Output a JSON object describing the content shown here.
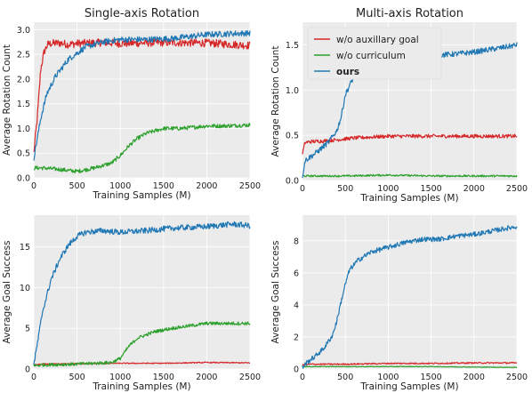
{
  "chart_data": [
    {
      "type": "line",
      "title": "Single-axis Rotation",
      "xlabel": "Training Samples (M)",
      "ylabel": "Average Rotation Count",
      "xlim": [
        0,
        2500
      ],
      "ylim": [
        0,
        3.15
      ],
      "xticks": [
        "0",
        "500",
        "1000",
        "1500",
        "2000",
        "2500"
      ],
      "xtick_values": [
        0,
        500,
        1000,
        1500,
        2000,
        2500
      ],
      "yticks": [
        "0.0",
        "0.5",
        "1.0",
        "1.5",
        "2.0",
        "2.5",
        "3.0"
      ],
      "ytick_values": [
        0,
        0.5,
        1.0,
        1.5,
        2.0,
        2.5,
        3.0
      ],
      "grid": true,
      "series": [
        {
          "name": "w/o auxillary goal",
          "color": "#d62728",
          "noise": 0.08,
          "x": [
            0,
            40,
            80,
            120,
            160,
            200,
            300,
            400,
            500,
            800,
            1000,
            1500,
            2000,
            2300,
            2500
          ],
          "y": [
            0.5,
            1.2,
            2.2,
            2.55,
            2.7,
            2.72,
            2.73,
            2.7,
            2.72,
            2.74,
            2.72,
            2.74,
            2.73,
            2.7,
            2.68
          ]
        },
        {
          "name": "w/o curriculum",
          "color": "#2ca02c",
          "noise": 0.04,
          "x": [
            0,
            100,
            300,
            500,
            700,
            900,
            1000,
            1100,
            1200,
            1300,
            1500,
            1700,
            2000,
            2200,
            2500
          ],
          "y": [
            0.2,
            0.2,
            0.17,
            0.13,
            0.2,
            0.3,
            0.45,
            0.65,
            0.8,
            0.9,
            1.0,
            1.0,
            1.05,
            1.05,
            1.07
          ]
        },
        {
          "name": "ours",
          "color": "#1f77b4",
          "noise": 0.06,
          "x": [
            0,
            30,
            80,
            150,
            250,
            400,
            600,
            800,
            1000,
            1300,
            1600,
            2000,
            2300,
            2500
          ],
          "y": [
            0.4,
            0.7,
            1.2,
            1.7,
            2.05,
            2.4,
            2.65,
            2.75,
            2.8,
            2.8,
            2.82,
            2.9,
            2.92,
            2.93
          ]
        }
      ]
    },
    {
      "type": "line",
      "title": "Multi-axis Rotation",
      "xlabel": "Training Samples (M)",
      "ylabel": "Average Rotation Count",
      "xlim": [
        0,
        2500
      ],
      "ylim": [
        0,
        1.75
      ],
      "xticks": [
        "0",
        "500",
        "1000",
        "1500",
        "2000",
        "2500"
      ],
      "xtick_values": [
        0,
        500,
        1000,
        1500,
        2000,
        2500
      ],
      "yticks": [
        "0.0",
        "0.5",
        "1.0",
        "1.5"
      ],
      "ytick_values": [
        0,
        0.5,
        1.0,
        1.5
      ],
      "grid": true,
      "legend": "top-left",
      "series": [
        {
          "name": "w/o auxillary goal",
          "color": "#d62728",
          "noise": 0.02,
          "x": [
            0,
            30,
            100,
            300,
            600,
            1000,
            1500,
            2000,
            2500
          ],
          "y": [
            0.3,
            0.42,
            0.43,
            0.44,
            0.47,
            0.49,
            0.49,
            0.49,
            0.49
          ]
        },
        {
          "name": "w/o curriculum",
          "color": "#2ca02c",
          "noise": 0.01,
          "x": [
            0,
            100,
            500,
            1000,
            1500,
            2000,
            2500
          ],
          "y": [
            0.05,
            0.05,
            0.05,
            0.06,
            0.05,
            0.05,
            0.05
          ]
        },
        {
          "name": "ours",
          "color": "#1f77b4",
          "noise": 0.03,
          "x": [
            0,
            30,
            150,
            300,
            400,
            450,
            500,
            600,
            700,
            900,
            1100,
            1300,
            1500,
            1800,
            2000,
            2200,
            2400,
            2500
          ],
          "y": [
            0.05,
            0.22,
            0.3,
            0.42,
            0.55,
            0.7,
            0.95,
            1.15,
            1.22,
            1.27,
            1.3,
            1.35,
            1.38,
            1.4,
            1.42,
            1.45,
            1.48,
            1.5
          ]
        }
      ]
    },
    {
      "type": "line",
      "title": "",
      "xlabel": "Training Samples (M)",
      "ylabel": "Average Goal Success",
      "xlim": [
        0,
        2500
      ],
      "ylim": [
        0,
        18.9
      ],
      "xticks": [
        "0",
        "500",
        "1000",
        "1500",
        "2000",
        "2500"
      ],
      "xtick_values": [
        0,
        500,
        1000,
        1500,
        2000,
        2500
      ],
      "yticks": [
        "0",
        "5",
        "10",
        "15"
      ],
      "ytick_values": [
        0,
        5,
        10,
        15
      ],
      "grid": true,
      "series": [
        {
          "name": "w/o auxillary goal",
          "color": "#d62728",
          "noise": 0.06,
          "x": [
            0,
            100,
            500,
            1000,
            1500,
            2000,
            2500
          ],
          "y": [
            0.5,
            0.6,
            0.65,
            0.7,
            0.7,
            0.8,
            0.75
          ]
        },
        {
          "name": "w/o curriculum",
          "color": "#2ca02c",
          "noise": 0.2,
          "x": [
            0,
            100,
            500,
            900,
            1000,
            1100,
            1200,
            1400,
            1600,
            1800,
            2000,
            2200,
            2500
          ],
          "y": [
            0.4,
            0.5,
            0.6,
            0.8,
            1.3,
            2.8,
            3.8,
            4.6,
            5.0,
            5.3,
            5.6,
            5.6,
            5.6
          ]
        },
        {
          "name": "ours",
          "color": "#1f77b4",
          "noise": 0.35,
          "x": [
            0,
            40,
            100,
            200,
            300,
            400,
            500,
            600,
            800,
            1000,
            1300,
            1600,
            2000,
            2300,
            2500
          ],
          "y": [
            0.5,
            3,
            7,
            11,
            13.5,
            15.2,
            16.3,
            16.8,
            17.0,
            16.8,
            17.0,
            17.3,
            17.5,
            17.8,
            17.6
          ]
        }
      ]
    },
    {
      "type": "line",
      "title": "",
      "xlabel": "Training Samples (M)",
      "ylabel": "Average Goal Success",
      "xlim": [
        0,
        2500
      ],
      "ylim": [
        0,
        9.6
      ],
      "xticks": [
        "0",
        "500",
        "1000",
        "1500",
        "2000",
        "2500"
      ],
      "xtick_values": [
        0,
        500,
        1000,
        1500,
        2000,
        2500
      ],
      "yticks": [
        "0",
        "2",
        "4",
        "6",
        "8"
      ],
      "ytick_values": [
        0,
        2,
        4,
        6,
        8
      ],
      "grid": true,
      "series": [
        {
          "name": "w/o auxillary goal",
          "color": "#d62728",
          "noise": 0.04,
          "x": [
            0,
            100,
            500,
            1000,
            1500,
            2000,
            2500
          ],
          "y": [
            0.25,
            0.3,
            0.3,
            0.35,
            0.35,
            0.38,
            0.38
          ]
        },
        {
          "name": "w/o curriculum",
          "color": "#2ca02c",
          "noise": 0.02,
          "x": [
            0,
            100,
            1000,
            1500,
            2000,
            2500
          ],
          "y": [
            0.15,
            0.15,
            0.15,
            0.15,
            0.12,
            0.1
          ]
        },
        {
          "name": "ours",
          "color": "#1f77b4",
          "noise": 0.15,
          "x": [
            0,
            50,
            150,
            250,
            350,
            400,
            450,
            500,
            550,
            650,
            800,
            1000,
            1200,
            1400,
            1600,
            1800,
            2000,
            2200,
            2400,
            2500
          ],
          "y": [
            0.1,
            0.4,
            0.8,
            1.3,
            2.1,
            3.0,
            4.2,
            5.3,
            6.2,
            6.8,
            7.3,
            7.6,
            7.9,
            8.1,
            8.1,
            8.3,
            8.4,
            8.6,
            8.8,
            8.9
          ]
        }
      ]
    }
  ]
}
